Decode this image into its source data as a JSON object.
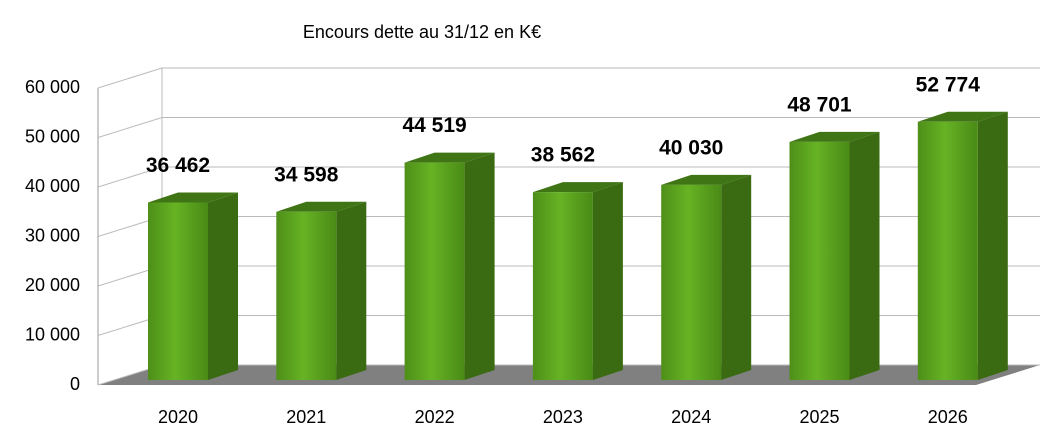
{
  "chart_data": {
    "type": "bar3d",
    "title": "Encours dette au 31/12 en K€",
    "categories": [
      "2020",
      "2021",
      "2022",
      "2023",
      "2024",
      "2025",
      "2026"
    ],
    "values": [
      36462,
      34598,
      44519,
      38562,
      40030,
      48701,
      52774
    ],
    "value_labels": [
      "36 462",
      "34 598",
      "44 519",
      "38 562",
      "40 030",
      "48 701",
      "52 774"
    ],
    "color": "#5ca51e",
    "ylim": [
      0,
      60000
    ],
    "yticks": [
      0,
      {
        "value": 10000,
        "label": "10 000"
      },
      {
        "value": 20000,
        "label": "20 000"
      },
      {
        "value": 30000,
        "label": "30 000"
      },
      {
        "value": 40000,
        "label": "40 000"
      },
      {
        "value": 50000,
        "label": "50 000"
      },
      {
        "value": 60000,
        "label": "60 000"
      }
    ],
    "grid": true
  }
}
